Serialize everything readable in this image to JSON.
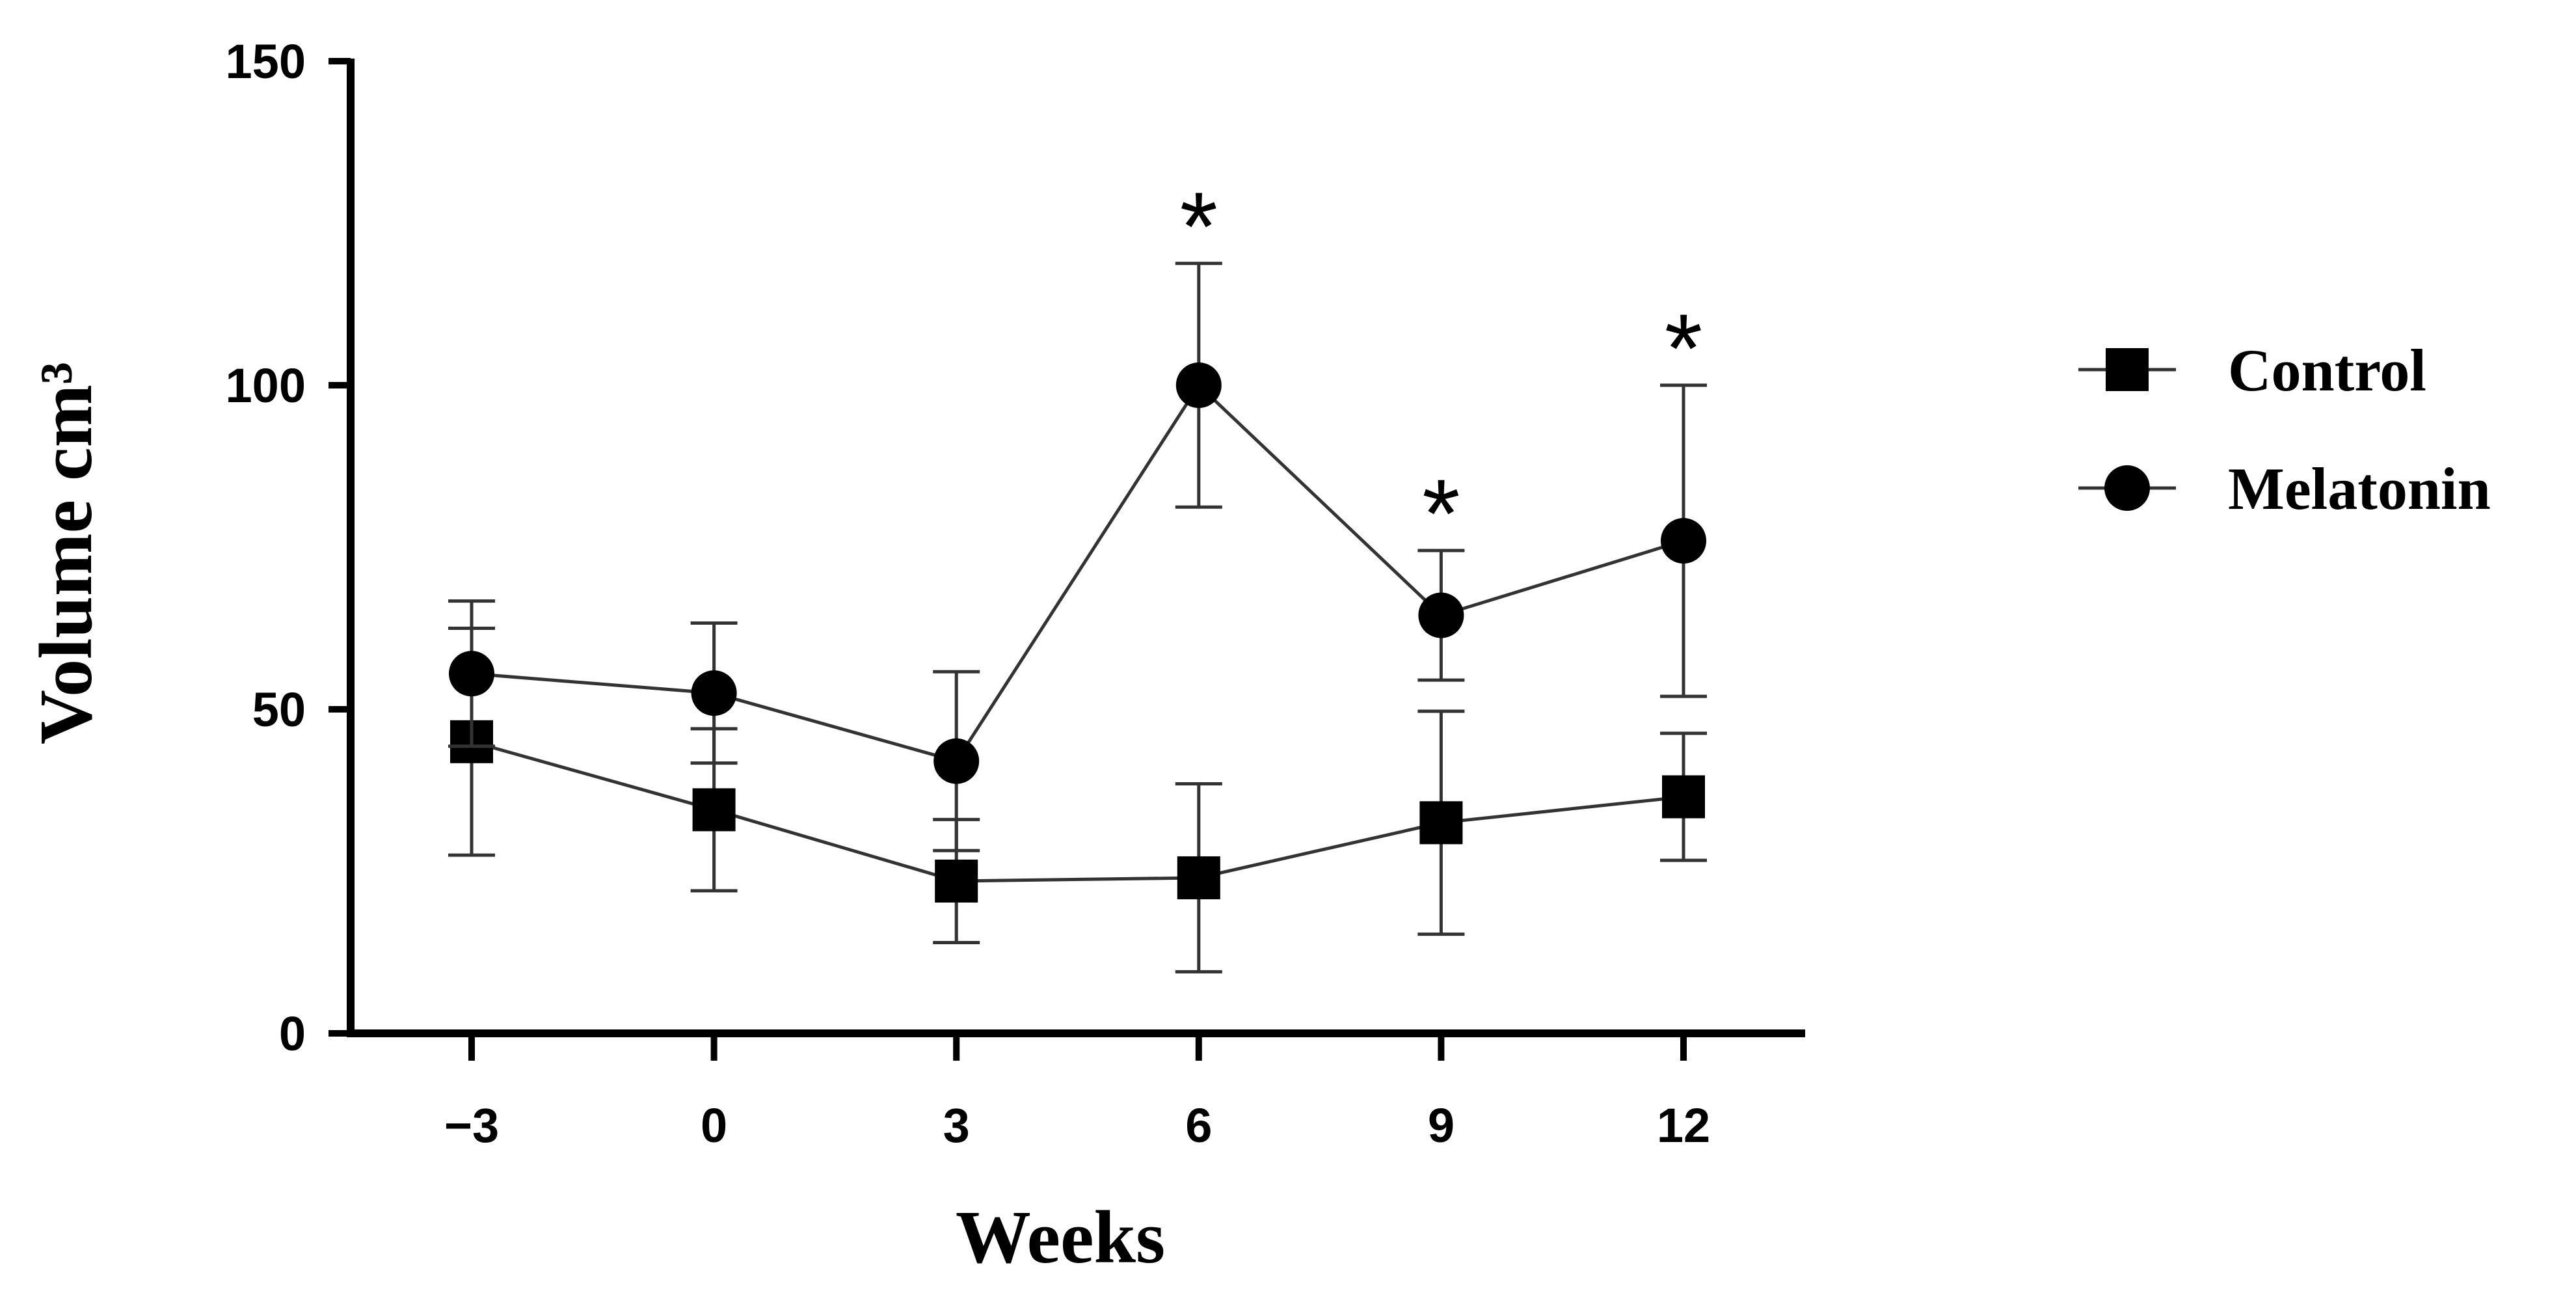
{
  "chart_data": {
    "type": "line",
    "title": "",
    "xlabel": "Weeks",
    "ylabel": "Volume cm³",
    "x": [
      -3,
      0,
      3,
      6,
      9,
      12
    ],
    "x_tick_labels": [
      "−3",
      "0",
      "3",
      "6",
      "9",
      "12"
    ],
    "ylim": [
      0,
      150
    ],
    "y_ticks": [
      0,
      50,
      100,
      150
    ],
    "y_tick_labels": [
      "0",
      "50",
      "100",
      "150"
    ],
    "grid": false,
    "legend_position": "right",
    "series": [
      {
        "name": "Control",
        "marker": "square",
        "values": [
          45,
          34.5,
          23.5,
          24,
          32.5,
          36.5
        ],
        "error": [
          17.5,
          12.5,
          9.5,
          14.5,
          17.2,
          9.8
        ]
      },
      {
        "name": "Melatonin",
        "marker": "circle",
        "values": [
          55.5,
          52.5,
          42,
          100,
          64.5,
          76
        ],
        "error": [
          11.2,
          10.8,
          13.8,
          18.8,
          10,
          24
        ]
      }
    ],
    "annotations": [
      {
        "x": 6,
        "text": "*"
      },
      {
        "x": 9,
        "text": "*"
      },
      {
        "x": 12,
        "text": "*"
      }
    ],
    "colors": {
      "line": "#333333",
      "marker": "#000000",
      "axis": "#000000"
    }
  }
}
